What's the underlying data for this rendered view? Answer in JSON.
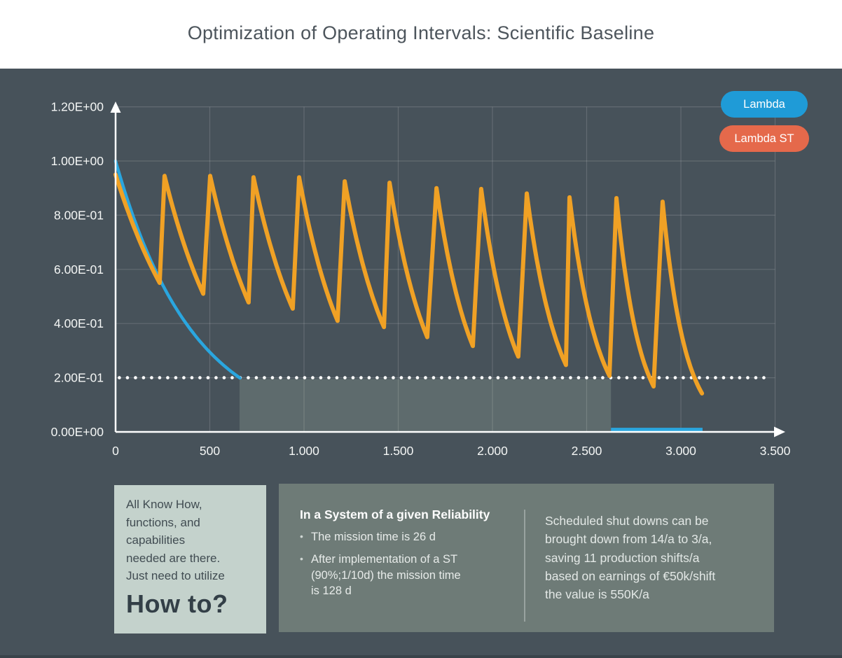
{
  "title": "Optimization of Operating Intervals: Scientific Baseline",
  "colors": {
    "panel_bg": "#47525a",
    "lambda_line": "#2aa6df",
    "lambda_st_line": "#f0a125",
    "legend_lambda_pill": "#1f9bd7",
    "legend_lambda_st_pill": "#e5694b",
    "grid": "rgba(255,255,255,0.15)",
    "axis": "#ffffff",
    "threshold_dots": "#ffffff",
    "shaded_region": "rgba(215,240,210,0.16)",
    "knowhow_bg": "#c4d2cc",
    "reliability_bg": "#6e7b77"
  },
  "legend": [
    {
      "label": "Lambda",
      "color": "#1f9bd7"
    },
    {
      "label": "Lambda ST",
      "color": "#e5694b"
    }
  ],
  "chart_data": {
    "type": "line",
    "title": "Optimization of Operating Intervals: Scientific Baseline",
    "xlabel": "",
    "ylabel": "",
    "xlim": [
      0,
      3500
    ],
    "ylim": [
      0,
      1.2
    ],
    "grid": true,
    "legend_position": "top-right",
    "x_ticks": {
      "values": [
        0,
        500,
        1000,
        1500,
        2000,
        2500,
        3000,
        3500
      ],
      "labels": [
        "0",
        "500",
        "1.000",
        "1.500",
        "2.000",
        "2.500",
        "3.000",
        "3.500"
      ]
    },
    "y_ticks": {
      "values": [
        0,
        0.2,
        0.4,
        0.6,
        0.8,
        1.0,
        1.2
      ],
      "labels": [
        "0.00E+00",
        "2.00E-01",
        "4.00E-01",
        "6.00E-01",
        "8.00E-01",
        "1.00E+00",
        "1.20E+00"
      ]
    },
    "threshold": {
      "value": 0.2,
      "style": "dotted",
      "color": "#ffffff",
      "x1": 20,
      "x2": 3470
    },
    "shaded_region": {
      "x1": 658,
      "x2": 2629,
      "y1": 0,
      "y2": 0.195
    },
    "series": [
      {
        "name": "Lambda",
        "color": "#2aa6df",
        "type": "exponential_decay",
        "start": {
          "x": 0,
          "v": 1.0
        },
        "decay_lambda": 0.002446,
        "visible_until": {
          "x": 660,
          "v": 0.2
        },
        "tail_segment": {
          "x1": 2629,
          "x2": 3115,
          "v": 0.008
        }
      },
      {
        "name": "Lambda ST",
        "color": "#f0a125",
        "type": "sawtooth",
        "start": {
          "x": 0,
          "v": 0.95
        },
        "teeth": [
          {
            "tx": 234,
            "tv": 0.55,
            "px": 260,
            "pv": 0.945
          },
          {
            "tx": 465,
            "tv": 0.51,
            "px": 502,
            "pv": 0.945
          },
          {
            "tx": 706,
            "tv": 0.478,
            "px": 732,
            "pv": 0.94
          },
          {
            "tx": 940,
            "tv": 0.455,
            "px": 974,
            "pv": 0.94
          },
          {
            "tx": 1178,
            "tv": 0.41,
            "px": 1216,
            "pv": 0.925
          },
          {
            "tx": 1424,
            "tv": 0.387,
            "px": 1454,
            "pv": 0.92
          },
          {
            "tx": 1654,
            "tv": 0.35,
            "px": 1703,
            "pv": 0.9
          },
          {
            "tx": 1896,
            "tv": 0.317,
            "px": 1940,
            "pv": 0.897
          },
          {
            "tx": 2137,
            "tv": 0.278,
            "px": 2182,
            "pv": 0.88
          },
          {
            "tx": 2390,
            "tv": 0.247,
            "px": 2409,
            "pv": 0.866
          },
          {
            "tx": 2621,
            "tv": 0.207,
            "px": 2658,
            "pv": 0.863
          },
          {
            "tx": 2855,
            "tv": 0.168,
            "px": 2903,
            "pv": 0.85
          }
        ],
        "end": {
          "x": 3112,
          "v": 0.142
        }
      }
    ]
  },
  "knowhow_box": {
    "text": "All Know How,\nfunctions, and\ncapabilities\nneeded are there.\nJust need to utilize",
    "cta": "How to?"
  },
  "reliability_box": {
    "heading": "In a System of a given Reliability",
    "bullets": [
      "The mission time is 26 d",
      "After implementation of a ST\n(90%;1/10d) the mission time\nis 128 d"
    ],
    "note": "Scheduled shut downs can be\nbrought down from 14/a to 3/a,\nsaving 11 production shifts/a\nbased on earnings of €50k/shift\nthe value is 550K/a"
  }
}
